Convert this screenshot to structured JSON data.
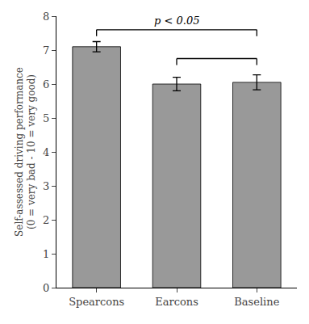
{
  "chart_data": {
    "type": "bar",
    "categories": [
      "Spearcons",
      "Earcons",
      "Baseline"
    ],
    "values": [
      7.1,
      6.0,
      6.05
    ],
    "errors": [
      0.15,
      0.2,
      0.22
    ],
    "color": "#999999",
    "ylabel": "Self-assessed driving performance\n(0 = very bad - 10 = very good)",
    "ylim": [
      0,
      8
    ],
    "yticks": [
      0,
      1,
      2,
      3,
      4,
      5,
      6,
      7,
      8
    ],
    "grid": false,
    "brackets": [
      {
        "from": "Spearcons",
        "to": "Baseline",
        "y": 7.6,
        "text": "p < 0.05"
      },
      {
        "from": "Earcons",
        "to": "Baseline",
        "y": 6.75
      }
    ]
  }
}
